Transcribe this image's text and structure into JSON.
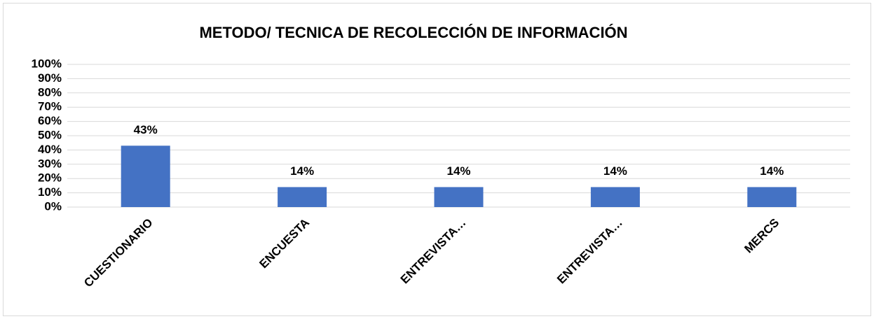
{
  "chart_data": {
    "type": "bar",
    "title": "METODO/ TECNICA DE RECOLECCIÓN DE INFORMACIÓN",
    "categories": [
      "CUESTIONARIO",
      "ENCUESTA",
      "ENTREVISTA…",
      "ENTREVISTA…",
      "MERCS"
    ],
    "values": [
      43,
      14,
      14,
      14,
      14
    ],
    "value_labels": [
      "43%",
      "14%",
      "14%",
      "14%",
      "14%"
    ],
    "color": "#4472c4",
    "ylim": [
      0,
      100
    ],
    "yticks": [
      {
        "value": 0,
        "label": "0%"
      },
      {
        "value": 10,
        "label": "10%"
      },
      {
        "value": 20,
        "label": "20%"
      },
      {
        "value": 30,
        "label": "30%"
      },
      {
        "value": 40,
        "label": "40%"
      },
      {
        "value": 50,
        "label": "50%"
      },
      {
        "value": 60,
        "label": "60%"
      },
      {
        "value": 70,
        "label": "70%"
      },
      {
        "value": 80,
        "label": "80%"
      },
      {
        "value": 90,
        "label": "90%"
      },
      {
        "value": 100,
        "label": "100%"
      }
    ],
    "grid": true
  }
}
